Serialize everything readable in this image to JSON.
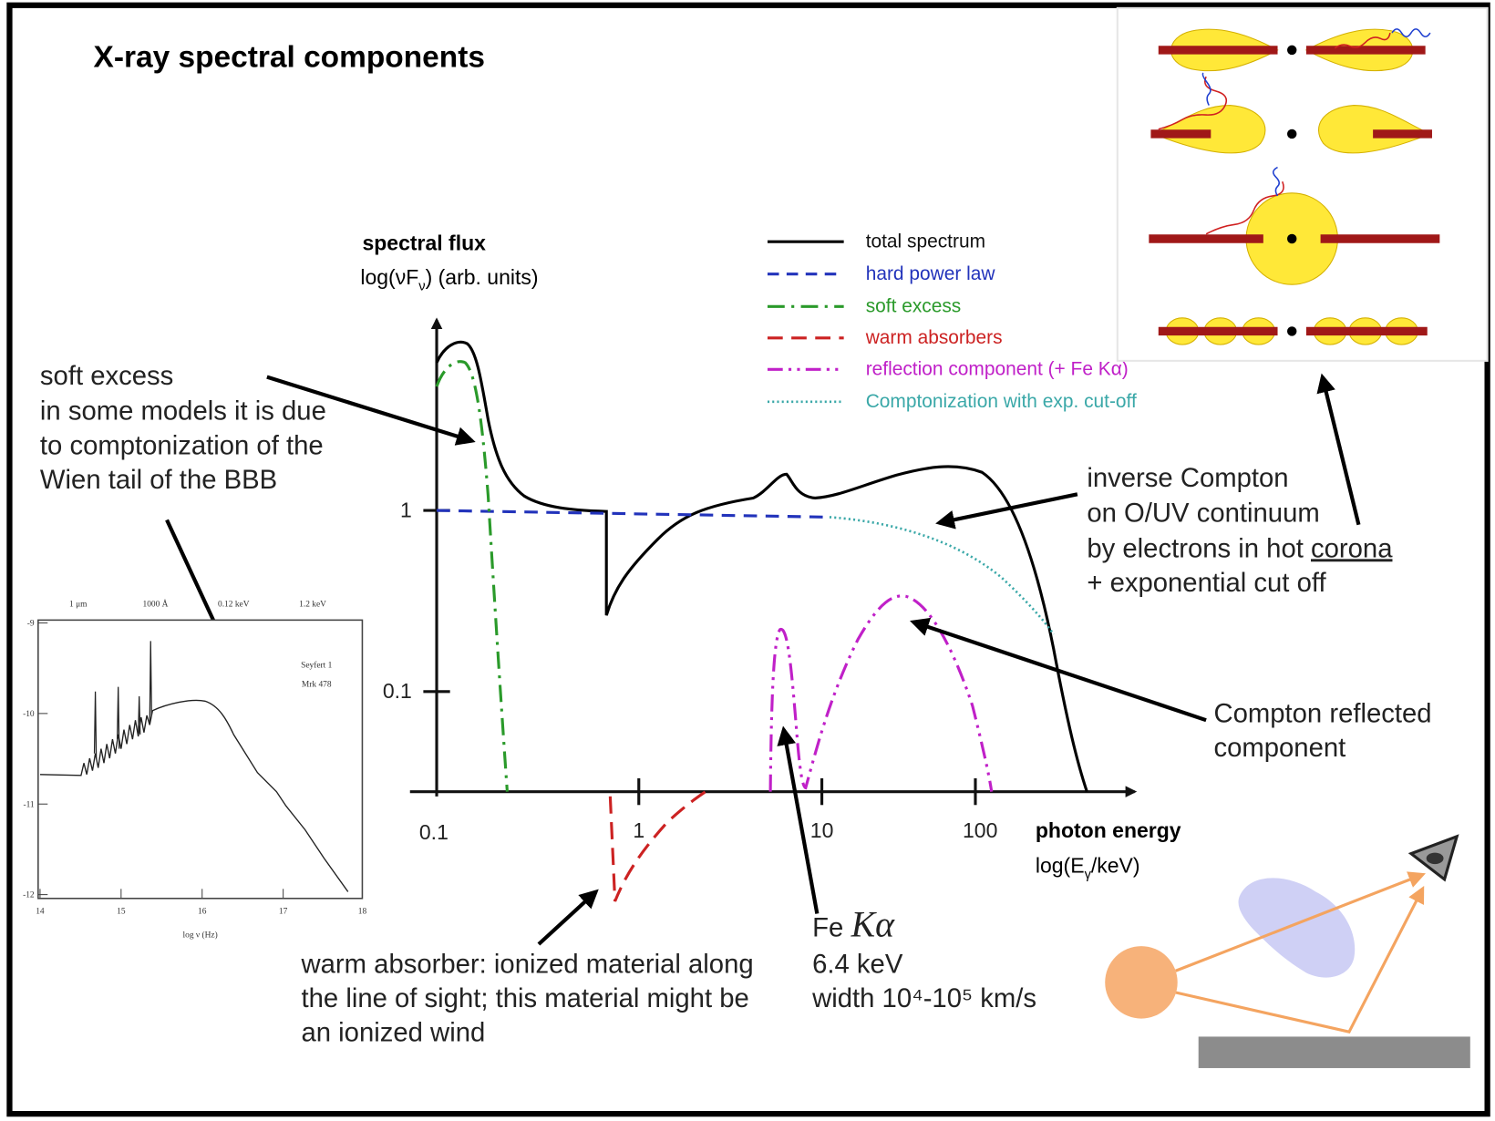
{
  "title": "X-ray spectral components",
  "plot": {
    "y_title": "spectral flux",
    "y_units": [
      "log(νF",
      "ν",
      ") (arb. units)"
    ],
    "x_title": "photon energy",
    "x_units": [
      "log(E",
      "γ",
      "/keV)"
    ],
    "y_ticks": [
      "1",
      "0.1"
    ],
    "x_ticks": [
      "0.1",
      "1",
      "10",
      "100"
    ],
    "legend": [
      "total spectrum",
      "hard power law",
      "soft excess",
      "warm absorbers",
      "reflection component (+ Fe Kα)",
      "Comptonization with exp. cut-off"
    ]
  },
  "annotations": {
    "soft_excess": [
      "soft excess",
      "in some models it is due",
      "to comptonization of the",
      "Wien tail of the BBB"
    ],
    "inverse_compton": [
      "inverse Compton",
      "on O/UV continuum",
      "by electrons in hot ",
      "corona",
      "+ exponential cut off"
    ],
    "compton_reflected": [
      "Compton reflected",
      "component"
    ],
    "warm_absorber": [
      "warm absorber: ionized material along",
      "the line of sight;  this material might be",
      "an ionized wind"
    ],
    "fe_line": [
      "Fe",
      "Kα",
      "6.4 keV",
      "width 10⁴-10⁵ km/s"
    ]
  },
  "inset_spectrum": {
    "top_labels": [
      "1 μm",
      "1000 Å",
      "0.12 keV",
      "1.2 keV"
    ],
    "x_ticks": [
      "14",
      "15",
      "16",
      "17",
      "18"
    ],
    "y_ticks": [
      "-9",
      "-10",
      "-11",
      "-12"
    ],
    "x_label": "log ν (Hz)",
    "source": [
      "Seyfert 1",
      "Mrk 478"
    ]
  }
}
